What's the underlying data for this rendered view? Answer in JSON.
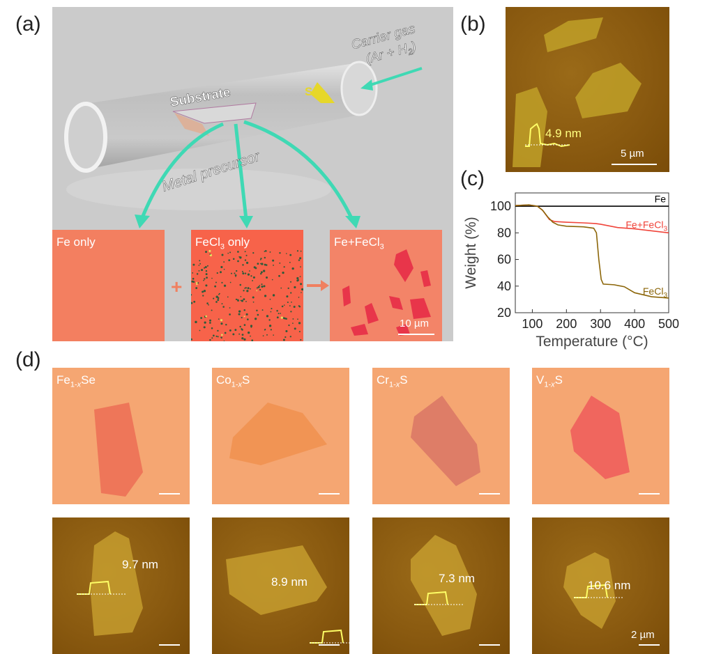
{
  "panels": {
    "a": {
      "label": "(a)",
      "carrier_gas_line1": "Carrier gas",
      "carrier_gas_line2": "(Ar + H",
      "carrier_gas_sub": "2",
      "carrier_gas_end": ")",
      "substrate": "Substrate",
      "sulfur": "S",
      "metal_precursor": "Metal precursor",
      "images": [
        {
          "label": "Fe only"
        },
        {
          "label_main": "FeCl",
          "label_sub": "3",
          "label_end": " only"
        },
        {
          "label_main": "Fe+FeCl",
          "label_sub": "3",
          "scale_bar": "10 µm"
        }
      ],
      "plus": "+",
      "arrow_color": "#f08060",
      "flow_arrow_color": "#3fd9b4"
    },
    "b": {
      "label": "(b)",
      "height": "4.9 nm",
      "scale_bar": "5 µm"
    },
    "c": {
      "label": "(c)"
    },
    "d": {
      "label": "(d)",
      "materials": [
        {
          "main": "Fe",
          "sub": "1-",
          "subx": "x",
          "end": "Se",
          "height": "9.7 nm"
        },
        {
          "main": "Co",
          "sub": "1-",
          "subx": "x",
          "end": "S",
          "height": "8.9 nm"
        },
        {
          "main": "Cr",
          "sub": "1-",
          "subx": "x",
          "end": "S",
          "height": "7.3 nm"
        },
        {
          "main": "V",
          "sub": "1-",
          "subx": "x",
          "end": "S",
          "height": "10.6 nm"
        }
      ],
      "afm_scale_bar": "2 µm"
    }
  },
  "chart_data": {
    "type": "line",
    "xlabel": "Temperature (°C)",
    "ylabel": "Weight (%)",
    "xlim": [
      50,
      500
    ],
    "ylim": [
      20,
      110
    ],
    "xticks": [
      100,
      200,
      300,
      400,
      500
    ],
    "yticks": [
      20,
      40,
      60,
      80,
      100
    ],
    "grid": false,
    "series": [
      {
        "name": "Fe",
        "color": "#000000",
        "x": [
          50,
          500
        ],
        "y": [
          100,
          100
        ]
      },
      {
        "name": "Fe+FeCl3",
        "name_main": "Fe+FeCl",
        "name_sub": "3",
        "color": "#f0443a",
        "x": [
          50,
          90,
          115,
          130,
          150,
          165,
          200,
          250,
          285,
          300,
          350,
          400,
          450,
          500
        ],
        "y": [
          100.5,
          101,
          100,
          97,
          90,
          88.5,
          88,
          87.5,
          87,
          86.5,
          84,
          83,
          81.5,
          80
        ]
      },
      {
        "name": "FeCl3",
        "name_main": "FeCl",
        "name_sub": "3",
        "color": "#8b6508",
        "x": [
          50,
          90,
          115,
          130,
          145,
          160,
          175,
          200,
          250,
          280,
          288,
          295,
          302,
          308,
          340,
          370,
          400,
          450,
          500
        ],
        "y": [
          100.5,
          101,
          100,
          97,
          92,
          88,
          86,
          85,
          84.5,
          83.5,
          80,
          60,
          45,
          41.5,
          41,
          39.5,
          35,
          32,
          31
        ]
      }
    ]
  }
}
